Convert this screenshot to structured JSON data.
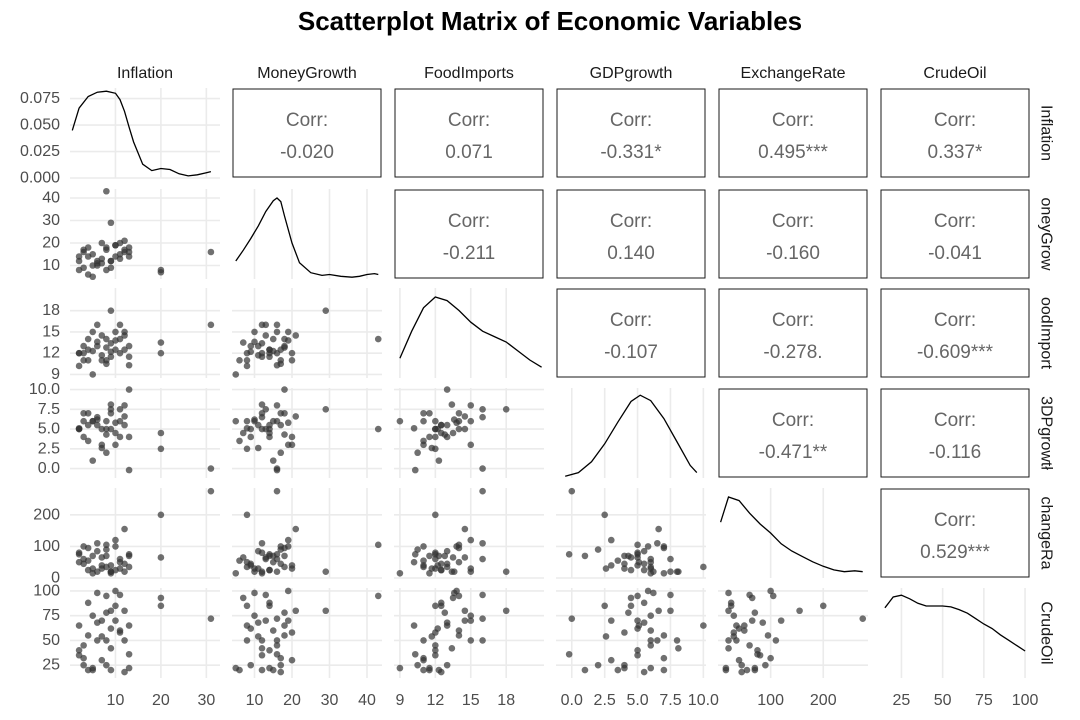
{
  "chart_data": {
    "type": "scatter",
    "title": "Scatterplot Matrix of Economic Variables",
    "variables": [
      "Inflation",
      "MoneyGrowth",
      "FoodImports",
      "GDPgrowth",
      "ExchangeRate",
      "CrudeOil"
    ],
    "row_strip_labels": [
      "Inflation",
      "oneyGrow",
      "oodImport",
      "3DPgrowtł",
      "changeRa",
      "CrudeOil"
    ],
    "corr_prefix": "Corr:",
    "correlations": [
      {
        "row": 0,
        "col": 1,
        "label": "-0.020"
      },
      {
        "row": 0,
        "col": 2,
        "label": "0.071"
      },
      {
        "row": 0,
        "col": 3,
        "label": "-0.331*"
      },
      {
        "row": 0,
        "col": 4,
        "label": "0.495***"
      },
      {
        "row": 0,
        "col": 5,
        "label": "0.337*"
      },
      {
        "row": 1,
        "col": 2,
        "label": "-0.211"
      },
      {
        "row": 1,
        "col": 3,
        "label": "0.140"
      },
      {
        "row": 1,
        "col": 4,
        "label": "-0.160"
      },
      {
        "row": 1,
        "col": 5,
        "label": "-0.041"
      },
      {
        "row": 2,
        "col": 3,
        "label": "-0.107"
      },
      {
        "row": 2,
        "col": 4,
        "label": "-0.278."
      },
      {
        "row": 2,
        "col": 5,
        "label": "-0.609***"
      },
      {
        "row": 3,
        "col": 4,
        "label": "-0.471**"
      },
      {
        "row": 3,
        "col": 5,
        "label": "-0.116"
      },
      {
        "row": 4,
        "col": 5,
        "label": "0.529***"
      }
    ],
    "x_axes": [
      {
        "range": [
          0,
          33
        ],
        "ticks": [
          10,
          20,
          30
        ],
        "tick_labels": [
          "10",
          "20",
          "30"
        ]
      },
      {
        "range": [
          4,
          44
        ],
        "ticks": [
          10,
          20,
          30,
          40
        ],
        "tick_labels": [
          "10",
          "20",
          "30",
          "40"
        ]
      },
      {
        "range": [
          8.5,
          21.2
        ],
        "ticks": [
          9,
          12,
          15,
          18
        ],
        "tick_labels": [
          "9",
          "12",
          "15",
          "18"
        ]
      },
      {
        "range": [
          -1.2,
          10.2
        ],
        "ticks": [
          0,
          2.5,
          5,
          7.5,
          10
        ],
        "tick_labels": [
          "0.0",
          "2.5",
          "5.0",
          "7.5",
          "10.0"
        ]
      },
      {
        "range": [
          0,
          285
        ],
        "ticks": [
          100,
          200
        ],
        "tick_labels": [
          "100",
          "200"
        ]
      },
      {
        "range": [
          12,
          103
        ],
        "ticks": [
          25,
          50,
          75,
          100
        ],
        "tick_labels": [
          "25",
          "50",
          "75",
          "100"
        ]
      }
    ],
    "y_axes": [
      {
        "range": [
          0,
          0.085
        ],
        "ticks": [
          0,
          0.025,
          0.05,
          0.075
        ],
        "tick_labels": [
          "0.000",
          "0.025",
          "0.050",
          "0.075"
        ]
      },
      {
        "range": [
          4,
          44
        ],
        "ticks": [
          10,
          20,
          30,
          40
        ],
        "tick_labels": [
          "10",
          "20",
          "30",
          "40"
        ]
      },
      {
        "range": [
          8.5,
          21.2
        ],
        "ticks": [
          9,
          12,
          15,
          18
        ],
        "tick_labels": [
          "9",
          "12",
          "15",
          "18"
        ]
      },
      {
        "range": [
          -1.2,
          10.2
        ],
        "ticks": [
          0,
          2.5,
          5,
          7.5,
          10
        ],
        "tick_labels": [
          "0.0",
          "2.5",
          "5.0",
          "7.5",
          "10.0"
        ]
      },
      {
        "range": [
          0,
          285
        ],
        "ticks": [
          0,
          100,
          200
        ],
        "tick_labels": [
          "0",
          "100",
          "200"
        ]
      },
      {
        "range": [
          12,
          103
        ],
        "ticks": [
          25,
          50,
          75,
          100
        ],
        "tick_labels": [
          "25",
          "50",
          "75",
          "100"
        ]
      }
    ],
    "observations": [
      [
        8,
        43,
        14,
        5,
        105,
        95
      ],
      [
        3,
        16,
        12,
        6,
        60,
        45
      ],
      [
        4,
        18,
        14,
        7,
        95,
        55
      ],
      [
        2,
        14,
        12,
        5,
        75,
        40
      ],
      [
        5,
        10,
        15,
        6,
        30,
        75
      ],
      [
        6,
        12,
        16,
        6.5,
        110,
        50
      ],
      [
        9,
        29,
        18,
        7.5,
        20,
        80
      ],
      [
        10,
        14,
        12.5,
        4.5,
        25,
        85
      ],
      [
        11,
        15,
        14,
        6,
        50,
        60
      ],
      [
        12,
        16,
        15,
        8,
        20,
        50
      ],
      [
        13,
        18,
        13,
        10,
        35,
        65
      ],
      [
        7,
        20,
        11,
        3,
        40,
        30
      ],
      [
        8,
        17,
        10.5,
        2,
        90,
        25
      ],
      [
        2,
        12,
        12,
        5,
        80,
        35
      ],
      [
        3,
        9,
        13,
        4,
        45,
        25
      ],
      [
        4,
        6,
        11,
        3.5,
        55,
        20
      ],
      [
        5,
        5,
        9,
        6,
        15,
        22
      ],
      [
        9,
        12,
        11.5,
        7,
        15,
        20
      ],
      [
        10,
        19,
        15,
        3,
        120,
        70
      ],
      [
        11,
        20,
        12,
        4,
        30,
        58
      ],
      [
        12,
        17,
        12.5,
        5.5,
        45,
        18
      ],
      [
        13,
        14,
        11.5,
        4,
        70,
        22
      ],
      [
        7,
        13,
        14.5,
        5,
        65,
        70
      ],
      [
        6,
        11,
        13,
        5.5,
        85,
        68
      ],
      [
        8,
        8,
        11,
        6,
        35,
        50
      ],
      [
        9,
        9,
        12.2,
        5,
        40,
        62
      ],
      [
        4,
        14,
        12.5,
        5.5,
        25,
        88
      ],
      [
        11,
        13,
        16,
        7.5,
        60,
        96
      ],
      [
        10,
        19,
        13.8,
        5.8,
        100,
        100
      ],
      [
        12,
        21,
        14.5,
        6.6,
        155,
        80
      ],
      [
        3,
        17,
        11,
        7,
        100,
        32
      ],
      [
        5,
        15,
        12.3,
        1,
        70,
        20
      ],
      [
        6,
        10,
        13.6,
        6.2,
        20,
        98
      ],
      [
        2,
        8,
        10.2,
        5.1,
        50,
        65
      ],
      [
        7,
        11,
        11.7,
        2.6,
        30,
        54
      ],
      [
        8,
        18,
        12.8,
        4.3,
        70,
        78
      ],
      [
        13,
        16,
        10.3,
        -0.2,
        75,
        36
      ],
      [
        9,
        12,
        13.4,
        8.1,
        20,
        42
      ],
      [
        20,
        7,
        13.5,
        4.5,
        65,
        93
      ],
      [
        20,
        8,
        12,
        2.5,
        200,
        85
      ],
      [
        31,
        16,
        16,
        0,
        275,
        72
      ]
    ],
    "density_curves": [
      {
        "x": [
          0.5,
          2,
          4,
          6,
          8,
          10,
          11,
          12,
          13,
          14,
          16,
          18,
          20,
          22,
          24,
          26,
          28,
          30,
          31
        ],
        "y": [
          0.045,
          0.066,
          0.077,
          0.081,
          0.082,
          0.08,
          0.074,
          0.063,
          0.048,
          0.034,
          0.013,
          0.007,
          0.009,
          0.008,
          0.004,
          0.002,
          0.003,
          0.005,
          0.006
        ]
      },
      {
        "x": [
          5,
          7,
          9,
          11,
          13,
          15,
          16,
          17,
          18,
          20,
          22,
          25,
          28,
          30,
          33,
          36,
          38,
          40,
          42,
          43
        ],
        "y": [
          0.2,
          0.32,
          0.45,
          0.59,
          0.75,
          0.87,
          0.9,
          0.86,
          0.7,
          0.4,
          0.18,
          0.07,
          0.04,
          0.05,
          0.03,
          0.02,
          0.03,
          0.05,
          0.06,
          0.05
        ]
      },
      {
        "x": [
          9,
          10,
          11,
          12,
          13,
          14,
          15,
          16,
          17,
          18,
          19,
          20,
          21
        ],
        "y": [
          0.22,
          0.52,
          0.78,
          0.9,
          0.86,
          0.75,
          0.62,
          0.52,
          0.46,
          0.4,
          0.3,
          0.2,
          0.12
        ]
      },
      {
        "x": [
          -0.5,
          0.5,
          1.5,
          2.5,
          3.5,
          4.5,
          5.2,
          6,
          7,
          8,
          9,
          9.5
        ],
        "y": [
          0.02,
          0.06,
          0.18,
          0.38,
          0.62,
          0.85,
          0.92,
          0.86,
          0.66,
          0.4,
          0.14,
          0.06
        ]
      },
      {
        "x": [
          5,
          20,
          40,
          60,
          80,
          100,
          120,
          140,
          160,
          180,
          200,
          220,
          240,
          260,
          275
        ],
        "y": [
          0.62,
          0.9,
          0.86,
          0.72,
          0.6,
          0.5,
          0.38,
          0.3,
          0.24,
          0.18,
          0.13,
          0.09,
          0.07,
          0.08,
          0.07
        ]
      },
      {
        "x": [
          15,
          20,
          25,
          30,
          35,
          40,
          45,
          50,
          55,
          60,
          65,
          70,
          75,
          80,
          85,
          90,
          95,
          100
        ],
        "y": [
          0.78,
          0.9,
          0.92,
          0.88,
          0.83,
          0.8,
          0.8,
          0.8,
          0.79,
          0.76,
          0.72,
          0.66,
          0.6,
          0.55,
          0.48,
          0.42,
          0.36,
          0.3
        ]
      }
    ],
    "colors": {
      "points": "#333333",
      "grid": "#ebebeb",
      "text": "#4d4d4d",
      "corr_text": "#666666"
    }
  }
}
